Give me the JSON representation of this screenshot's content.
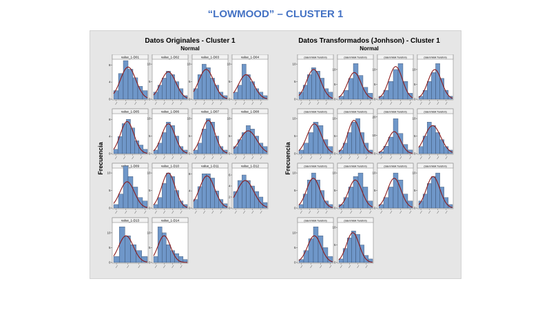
{
  "slide": {
    "title": "“LOWMOOD” – CLUSTER 1"
  },
  "colors": {
    "bar": "#6f97c9",
    "bar_edge": "#2b3d57",
    "curve": "#8b1a1a",
    "panel_bg": "#e6e6e6",
    "title": "#4472c4"
  },
  "chart_data": [
    {
      "type": "bar",
      "title": "Datos Originales - Cluster 1",
      "subtitle": "Normal",
      "ylabel": "Frecuencia",
      "facets": [
        {
          "name": "value_1-D01",
          "yticks": [
            0,
            4,
            8
          ],
          "ymax": 9,
          "values": [
            2,
            6,
            9,
            7,
            5,
            3,
            2
          ],
          "fit": {
            "mu": 3.0,
            "sigma": 1.6,
            "peak": 7.5
          }
        },
        {
          "name": "value_1-D02",
          "yticks": [
            0,
            5,
            10
          ],
          "ymax": 11,
          "values": [
            2,
            4,
            6,
            8,
            7,
            5,
            3,
            1
          ],
          "fit": {
            "mu": 3.5,
            "sigma": 1.8,
            "peak": 7.8
          }
        },
        {
          "name": "value_1-D03",
          "yticks": [
            0,
            5,
            10
          ],
          "ymax": 11,
          "values": [
            3,
            7,
            10,
            9,
            6,
            4,
            2,
            1
          ],
          "fit": {
            "mu": 3.0,
            "sigma": 1.8,
            "peak": 8.5
          }
        },
        {
          "name": "value_1-D04",
          "yticks": [
            0,
            5,
            10
          ],
          "ymax": 11,
          "values": [
            2,
            4,
            10,
            7,
            5,
            3,
            2,
            1
          ],
          "fit": {
            "mu": 3.0,
            "sigma": 1.8,
            "peak": 7.0
          }
        },
        {
          "name": "value_1-D05",
          "yticks": [
            0,
            4,
            8
          ],
          "ymax": 9,
          "values": [
            1,
            4,
            7,
            8,
            6,
            3,
            2,
            1
          ],
          "fit": {
            "mu": 3.2,
            "sigma": 1.6,
            "peak": 7.5
          }
        },
        {
          "name": "value_1-D06",
          "yticks": [
            0,
            5,
            10
          ],
          "ymax": 11,
          "values": [
            1,
            3,
            6,
            9,
            8,
            5,
            2,
            1
          ],
          "fit": {
            "mu": 3.5,
            "sigma": 1.6,
            "peak": 8.5
          }
        },
        {
          "name": "value_1-D07",
          "yticks": [
            0,
            5,
            10
          ],
          "ymax": 11,
          "values": [
            1,
            3,
            7,
            10,
            9,
            5,
            2,
            1
          ],
          "fit": {
            "mu": 3.5,
            "sigma": 1.6,
            "peak": 9.5
          }
        },
        {
          "name": "value_1-D08",
          "yticks": [
            0,
            5,
            10
          ],
          "ymax": 11,
          "values": [
            2,
            4,
            6,
            8,
            7,
            5,
            3,
            2
          ],
          "fit": {
            "mu": 3.5,
            "sigma": 2.0,
            "peak": 6.5
          }
        },
        {
          "name": "value_1-D09",
          "yticks": [
            0,
            5,
            10
          ],
          "ymax": 11,
          "values": [
            1,
            4,
            12,
            9,
            6,
            3,
            2
          ],
          "fit": {
            "mu": 2.8,
            "sigma": 1.5,
            "peak": 7.5
          }
        },
        {
          "name": "value_1-D10",
          "yticks": [
            0,
            5,
            10
          ],
          "ymax": 11,
          "values": [
            1,
            3,
            7,
            10,
            9,
            5,
            2,
            1
          ],
          "fit": {
            "mu": 3.5,
            "sigma": 1.6,
            "peak": 10.0
          }
        },
        {
          "name": "value_1-D11",
          "yticks": [
            0,
            4,
            8
          ],
          "ymax": 9,
          "values": [
            2,
            5,
            8,
            8,
            7,
            4,
            2,
            1
          ],
          "fit": {
            "mu": 3.2,
            "sigma": 1.8,
            "peak": 7.5
          }
        },
        {
          "name": "value_1-D12",
          "yticks": [
            0,
            2,
            4,
            6
          ],
          "ymax": 7,
          "values": [
            3,
            5,
            6,
            5,
            4,
            3,
            2,
            1
          ],
          "fit": {
            "mu": 2.8,
            "sigma": 2.0,
            "peak": 5.0
          }
        },
        {
          "name": "value_1-D13",
          "yticks": [
            0,
            5,
            10
          ],
          "ymax": 13,
          "values": [
            2,
            12,
            9,
            6,
            4,
            2
          ],
          "fit": {
            "mu": 2.2,
            "sigma": 1.3,
            "peak": 9.0
          }
        },
        {
          "name": "value_1-D14",
          "yticks": [
            0,
            5,
            10
          ],
          "ymax": 13,
          "values": [
            2,
            12,
            10,
            6,
            4,
            3,
            2,
            1
          ],
          "fit": {
            "mu": 2.5,
            "sigma": 1.5,
            "peak": 9.0
          }
        }
      ]
    },
    {
      "type": "bar",
      "title": "Datos Transformados (Jonhson) - Cluster 1",
      "subtitle": "Normal",
      "ylabel": "Frecuencia",
      "facets": [
        {
          "name": "(Salem:Walk Transfom)",
          "yticks": [
            0,
            5,
            10
          ],
          "ymax": 11,
          "values": [
            2,
            4,
            7,
            9,
            8,
            6,
            3,
            2
          ],
          "fit": {
            "mu": 3.5,
            "sigma": 1.7,
            "peak": 8.5
          }
        },
        {
          "name": "(Salem:Walk Transfom)",
          "yticks": [
            0,
            5,
            10
          ],
          "ymax": 13,
          "values": [
            1,
            3,
            7,
            12,
            8,
            4,
            2
          ],
          "fit": {
            "mu": 3.2,
            "sigma": 1.4,
            "peak": 9.0
          }
        },
        {
          "name": "(Salem:Walk Transfom)",
          "yticks": [
            0,
            5,
            10
          ],
          "ymax": 13,
          "values": [
            1,
            3,
            6,
            10,
            12,
            6,
            2
          ],
          "fit": {
            "mu": 3.5,
            "sigma": 1.4,
            "peak": 11.0
          }
        },
        {
          "name": "(Salem:Walk Transfom)",
          "yticks": [
            0,
            5,
            10
          ],
          "ymax": 13,
          "values": [
            1,
            3,
            6,
            9,
            12,
            7,
            3,
            1
          ],
          "fit": {
            "mu": 3.8,
            "sigma": 1.6,
            "peak": 10.0
          }
        },
        {
          "name": "(Salem:Walk Transfom)",
          "yticks": [
            0,
            5,
            10
          ],
          "ymax": 11,
          "values": [
            1,
            3,
            6,
            9,
            8,
            4,
            2
          ],
          "fit": {
            "mu": 3.2,
            "sigma": 1.5,
            "peak": 8.5
          }
        },
        {
          "name": "(Salem:Walk Transfom)",
          "yticks": [
            0,
            5,
            10
          ],
          "ymax": 11,
          "values": [
            1,
            3,
            6,
            9,
            10,
            6,
            3,
            1
          ],
          "fit": {
            "mu": 3.6,
            "sigma": 1.5,
            "peak": 9.5
          }
        },
        {
          "name": "(Salem:Walk Transfom)",
          "yticks": [
            0,
            10,
            20
          ],
          "ymax": 21,
          "values": [
            1,
            4,
            9,
            19,
            11,
            5,
            2
          ],
          "fit": {
            "mu": 3.2,
            "sigma": 1.3,
            "peak": 12.0
          }
        },
        {
          "name": "(Salem:Walk Transfom)",
          "yticks": [
            0,
            5,
            10
          ],
          "ymax": 11,
          "values": [
            2,
            5,
            9,
            8,
            6,
            4,
            2,
            1
          ],
          "fit": {
            "mu": 3.3,
            "sigma": 1.9,
            "peak": 8.0
          }
        },
        {
          "name": "(Salem:Walk Transfom)",
          "yticks": [
            0,
            5,
            10
          ],
          "ymax": 11,
          "values": [
            1,
            4,
            8,
            10,
            8,
            5,
            2,
            1
          ],
          "fit": {
            "mu": 3.4,
            "sigma": 1.6,
            "peak": 8.5
          }
        },
        {
          "name": "(Salem:Walk Transfom)",
          "yticks": [
            0,
            5,
            10
          ],
          "ymax": 11,
          "values": [
            1,
            3,
            6,
            9,
            10,
            6,
            2
          ],
          "fit": {
            "mu": 3.4,
            "sigma": 1.4,
            "peak": 8.0
          }
        },
        {
          "name": "(Salem:Walk Transfom)",
          "yticks": [
            0,
            5,
            10
          ],
          "ymax": 11,
          "values": [
            1,
            3,
            6,
            10,
            8,
            4,
            2
          ],
          "fit": {
            "mu": 3.2,
            "sigma": 1.4,
            "peak": 8.5
          }
        },
        {
          "name": "(Salem:Walk Transfom)",
          "yticks": [
            0,
            5,
            10
          ],
          "ymax": 11,
          "values": [
            2,
            4,
            7,
            9,
            10,
            6,
            3,
            1
          ],
          "fit": {
            "mu": 3.4,
            "sigma": 1.6,
            "peak": 9.0
          }
        },
        {
          "name": "(Salem:Walk Transfom)",
          "yticks": [
            0,
            5,
            10
          ],
          "ymax": 13,
          "values": [
            1,
            4,
            8,
            12,
            9,
            5,
            2
          ],
          "fit": {
            "mu": 3.2,
            "sigma": 1.4,
            "peak": 9.0
          }
        },
        {
          "name": "(Salem:Walk Transfom)",
          "yticks": [
            0,
            5,
            10
          ],
          "ymax": 11,
          "values": [
            1,
            4,
            7,
            9,
            8,
            5,
            2,
            1
          ],
          "fit": {
            "mu": 3.3,
            "sigma": 1.5,
            "peak": 8.5
          }
        }
      ]
    }
  ]
}
